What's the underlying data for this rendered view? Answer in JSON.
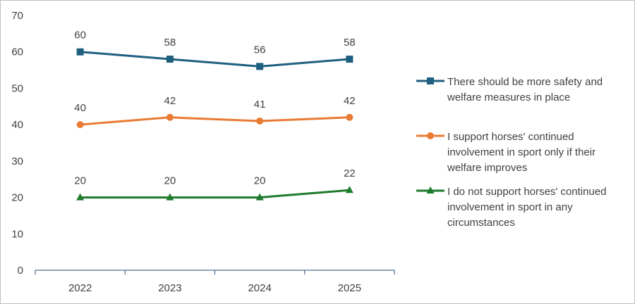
{
  "chart_data": {
    "type": "line",
    "categories": [
      "2022",
      "2023",
      "2024",
      "2025"
    ],
    "ylim": [
      0,
      70
    ],
    "yticks": [
      0,
      10,
      20,
      30,
      40,
      50,
      60,
      70
    ],
    "grid": false,
    "legend_position": "right",
    "series": [
      {
        "name": "There should be more safety and welfare measures in place",
        "legend_lines": [
          "There should be more safety and",
          "welfare measures in place"
        ],
        "values": [
          60,
          58,
          56,
          58
        ],
        "color": "#1f5f7f",
        "marker": "square"
      },
      {
        "name": "I support horses' continued involvement in sport only if their welfare improves",
        "legend_lines": [
          "I support horses' continued",
          "involvement in sport only if their",
          "welfare improves"
        ],
        "values": [
          40,
          42,
          41,
          42
        ],
        "color": "#e97b34",
        "marker": "circle"
      },
      {
        "name": "I do not support horses' continued involvement in sport in any circumstances",
        "legend_lines": [
          "I do not support horses' continued",
          "involvement in sport in any",
          "circumstances"
        ],
        "values": [
          20,
          20,
          20,
          22
        ],
        "color": "#1e7a2c",
        "marker": "triangle"
      }
    ]
  }
}
